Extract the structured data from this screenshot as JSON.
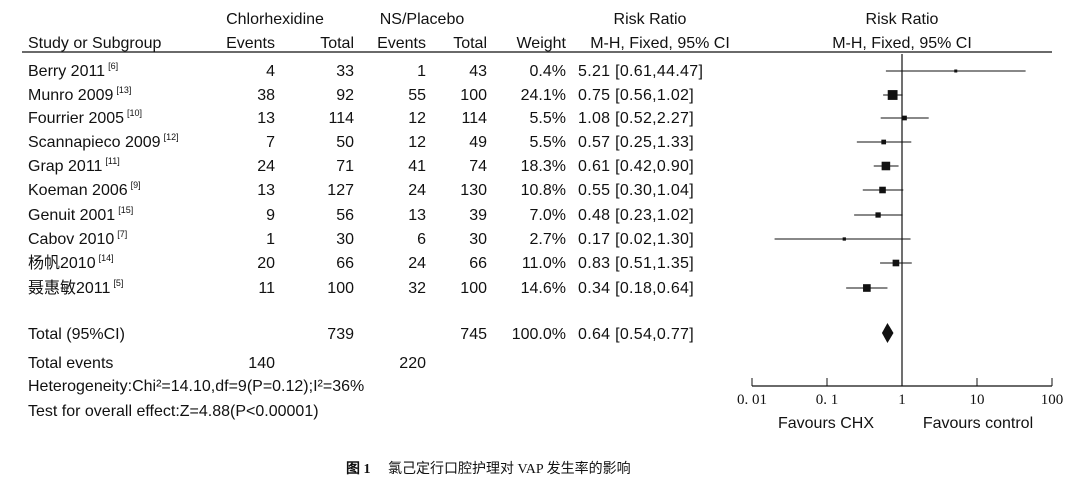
{
  "headers": {
    "group1": "Chlorhexidine",
    "group2": "NS/Placebo",
    "rr_left": "Risk Ratio",
    "rr_right": "Risk Ratio",
    "study": "Study or Subgroup",
    "events1": "Events",
    "total1": "Total",
    "events2": "Events",
    "total2": "Total",
    "weight": "Weight",
    "method_left": "M-H, Fixed, 95% CI",
    "method_right": "M-H, Fixed, 95% CI"
  },
  "studies": [
    {
      "name": "Berry 2011",
      "ref": "[6]",
      "events1": "4",
      "total1": "33",
      "events2": "1",
      "total2": "43",
      "weight": "0.4%",
      "ci_text": "5.21 [0.61,44.47]",
      "rr": 5.21,
      "lo": 0.61,
      "hi": 44.47,
      "w": 0.4
    },
    {
      "name": "Munro 2009",
      "ref": "[13]",
      "events1": "38",
      "total1": "92",
      "events2": "55",
      "total2": "100",
      "weight": "24.1%",
      "ci_text": "0.75 [0.56,1.02]",
      "rr": 0.75,
      "lo": 0.56,
      "hi": 1.02,
      "w": 24.1
    },
    {
      "name": "Fourrier 2005",
      "ref": "[10]",
      "events1": "13",
      "total1": "114",
      "events2": "12",
      "total2": "114",
      "weight": "5.5%",
      "ci_text": "1.08 [0.52,2.27]",
      "rr": 1.08,
      "lo": 0.52,
      "hi": 2.27,
      "w": 5.5
    },
    {
      "name": "Scannapieco 2009",
      "ref": "[12]",
      "events1": "7",
      "total1": "50",
      "events2": "12",
      "total2": "49",
      "weight": "5.5%",
      "ci_text": "0.57 [0.25,1.33]",
      "rr": 0.57,
      "lo": 0.25,
      "hi": 1.33,
      "w": 5.5
    },
    {
      "name": "Grap 2011",
      "ref": "[11]",
      "events1": "24",
      "total1": "71",
      "events2": "41",
      "total2": "74",
      "weight": "18.3%",
      "ci_text": "0.61 [0.42,0.90]",
      "rr": 0.61,
      "lo": 0.42,
      "hi": 0.9,
      "w": 18.3
    },
    {
      "name": "Koeman 2006",
      "ref": "[9]",
      "events1": "13",
      "total1": "127",
      "events2": "24",
      "total2": "130",
      "weight": "10.8%",
      "ci_text": "0.55 [0.30,1.04]",
      "rr": 0.55,
      "lo": 0.3,
      "hi": 1.04,
      "w": 10.8
    },
    {
      "name": "Genuit 2001",
      "ref": "[15]",
      "events1": "9",
      "total1": "56",
      "events2": "13",
      "total2": "39",
      "weight": "7.0%",
      "ci_text": "0.48 [0.23,1.02]",
      "rr": 0.48,
      "lo": 0.23,
      "hi": 1.02,
      "w": 7.0
    },
    {
      "name": "Cabov 2010",
      "ref": "[7]",
      "events1": "1",
      "total1": "30",
      "events2": "6",
      "total2": "30",
      "weight": "2.7%",
      "ci_text": "0.17 [0.02,1.30]",
      "rr": 0.17,
      "lo": 0.02,
      "hi": 1.3,
      "w": 2.7
    },
    {
      "name": "杨帆2010",
      "ref": "[14]",
      "events1": "20",
      "total1": "66",
      "events2": "24",
      "total2": "66",
      "weight": "11.0%",
      "ci_text": "0.83 [0.51,1.35]",
      "rr": 0.83,
      "lo": 0.51,
      "hi": 1.35,
      "w": 11.0
    },
    {
      "name": "聂惠敏2011",
      "ref": "[5]",
      "events1": "11",
      "total1": "100",
      "events2": "32",
      "total2": "100",
      "weight": "14.6%",
      "ci_text": "0.34 [0.18,0.64]",
      "rr": 0.34,
      "lo": 0.18,
      "hi": 0.64,
      "w": 14.6
    }
  ],
  "total": {
    "label": "Total (95%CI)",
    "total1": "739",
    "total2": "745",
    "weight": "100.0%",
    "ci_text": "0.64 [0.54,0.77]",
    "rr": 0.64,
    "lo": 0.54,
    "hi": 0.77
  },
  "events_row": {
    "label": "Total events",
    "events1": "140",
    "events2": "220"
  },
  "heterogeneity": "Heterogeneity:Chi²=14.10,df=9(P=0.12);I²=36%",
  "overall_effect": "Test for overall effect:Z=4.88(P<0.00001)",
  "axis": {
    "ticks": [
      0.01,
      0.1,
      1,
      10,
      100
    ],
    "tick_labels": [
      "0. 01",
      "0. 1",
      "1",
      "10",
      "100"
    ],
    "favours_left": "Favours CHX",
    "favours_right": "Favours control"
  },
  "caption": {
    "fig_label": "图 1",
    "text": "氯己定行口腔护理对 VAP 发生率的影响"
  },
  "chart_data": {
    "type": "forest",
    "title": "",
    "scale": "log",
    "xlim": [
      0.01,
      100
    ],
    "reference_line": 1,
    "series": [
      {
        "name": "Chlorhexidine vs NS/Placebo",
        "studies": [
          "Berry 2011",
          "Munro 2009",
          "Fourrier 2005",
          "Scannapieco 2009",
          "Grap 2011",
          "Koeman 2006",
          "Genuit 2001",
          "Cabov 2010",
          "杨帆2010",
          "聂惠敏2011"
        ],
        "rr": [
          5.21,
          0.75,
          1.08,
          0.57,
          0.61,
          0.55,
          0.48,
          0.17,
          0.83,
          0.34
        ],
        "ci_low": [
          0.61,
          0.56,
          0.52,
          0.25,
          0.42,
          0.3,
          0.23,
          0.02,
          0.51,
          0.18
        ],
        "ci_high": [
          44.47,
          1.02,
          2.27,
          1.33,
          0.9,
          1.04,
          1.02,
          1.3,
          1.35,
          0.64
        ],
        "weights": [
          0.4,
          24.1,
          5.5,
          5.5,
          18.3,
          10.8,
          7.0,
          2.7,
          11.0,
          14.6
        ]
      }
    ],
    "pooled": {
      "rr": 0.64,
      "ci_low": 0.54,
      "ci_high": 0.77
    }
  }
}
